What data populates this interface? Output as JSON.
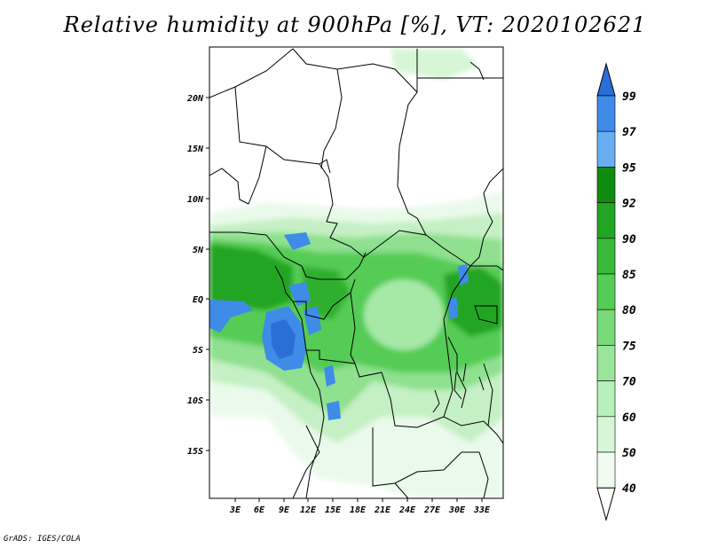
{
  "title": "Relative humidity at 900hPa [%], VT: 2020102621",
  "credit": "GrADS: IGES/COLA",
  "map": {
    "lat_labels": [
      "20N",
      "15N",
      "10N",
      "5N",
      "EQ",
      "5S",
      "10S",
      "15S"
    ],
    "lon_labels": [
      "3E",
      "6E",
      "9E",
      "12E",
      "15E",
      "18E",
      "21E",
      "24E",
      "27E",
      "30E",
      "33E"
    ]
  },
  "colorbar": {
    "levels": [
      "99",
      "97",
      "95",
      "92",
      "90",
      "85",
      "80",
      "75",
      "70",
      "60",
      "50",
      "40"
    ],
    "colors": [
      "#2a6fd6",
      "#3e8ce8",
      "#6aaef2",
      "#0f8c0f",
      "#22a522",
      "#39b939",
      "#55cc55",
      "#78d978",
      "#9ae59a",
      "#b9efb9",
      "#d6f6d6",
      "#f0fcf0"
    ]
  }
}
